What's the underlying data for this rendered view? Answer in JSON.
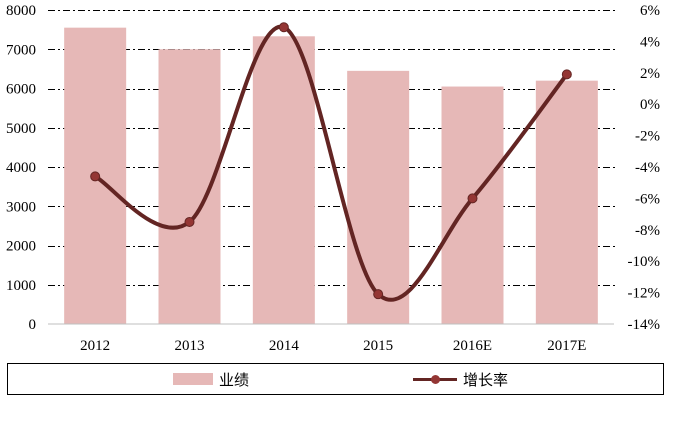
{
  "chart_data": {
    "type": "bar",
    "categories": [
      "2012",
      "2013",
      "2014",
      "2015",
      "2016E",
      "2017E"
    ],
    "series": [
      {
        "name": "业绩",
        "type": "bar",
        "axis": "left",
        "values": [
          7550,
          7000,
          7330,
          6450,
          6050,
          6200
        ]
      },
      {
        "name": "增长率",
        "type": "line",
        "axis": "right",
        "values": [
          -4.6,
          -7.5,
          4.9,
          -12.1,
          -6.0,
          1.9
        ]
      }
    ],
    "y_left": {
      "lim": [
        0,
        8000
      ],
      "ticks": [
        "0",
        "1000",
        "2000",
        "3000",
        "4000",
        "5000",
        "6000",
        "7000",
        "8000"
      ]
    },
    "y_right": {
      "lim": [
        -14,
        6
      ],
      "ticks": [
        "-14%",
        "-12%",
        "-10%",
        "-8%",
        "-6%",
        "-4%",
        "-2%",
        "0%",
        "2%",
        "4%",
        "6%"
      ]
    },
    "grid": "horizontal dash-dot",
    "legend": "bottom",
    "colors": {
      "bar": "#e6b8b7",
      "line": "#632523",
      "marker": "#943634"
    }
  }
}
